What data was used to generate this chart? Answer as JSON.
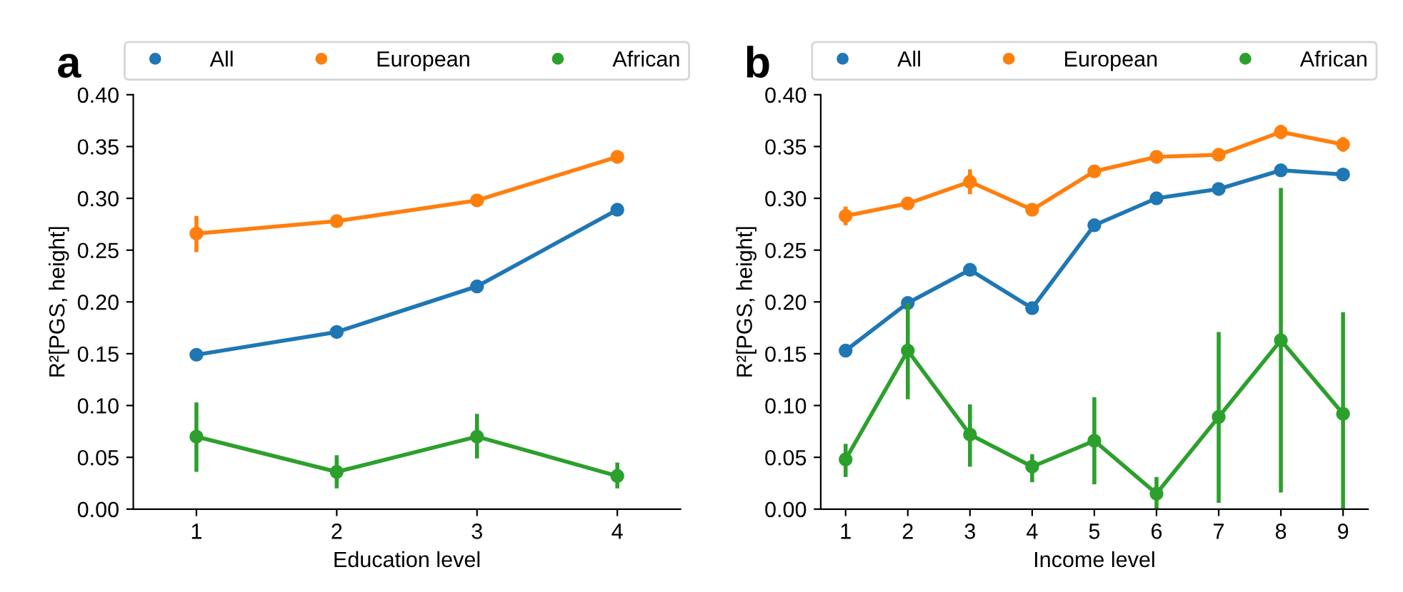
{
  "chart_data": [
    {
      "type": "line",
      "title": "a",
      "xlabel": "Education level",
      "ylabel": "R²[PGS, height]",
      "x": [
        1,
        2,
        3,
        4
      ],
      "xticks": [
        1,
        2,
        3,
        4
      ],
      "xlim": [
        0.55,
        4.45
      ],
      "ylim": [
        0,
        0.4
      ],
      "yticks": [
        {
          "value": 0,
          "label": "0.00"
        },
        {
          "value": 0.05,
          "label": "0.05"
        },
        {
          "value": 0.1,
          "label": "0.10"
        },
        {
          "value": 0.15,
          "label": "0.15"
        },
        {
          "value": 0.2,
          "label": "0.20"
        },
        {
          "value": 0.25,
          "label": "0.25"
        },
        {
          "value": 0.3,
          "label": "0.30"
        },
        {
          "value": 0.35,
          "label": "0.35"
        },
        {
          "value": 0.4,
          "label": "0.40"
        }
      ],
      "marker": "circle",
      "legend": "top",
      "grid": false,
      "series": [
        {
          "name": "All",
          "color": "#1f77b4",
          "values": [
            0.149,
            0.171,
            0.215,
            0.289
          ],
          "errors": [
            [
              0.145,
              0.153
            ],
            [
              0.168,
              0.174
            ],
            [
              0.211,
              0.219
            ],
            [
              0.286,
              0.292
            ]
          ]
        },
        {
          "name": "European",
          "color": "#ff7f0e",
          "values": [
            0.266,
            0.278,
            0.298,
            0.34
          ],
          "errors": [
            [
              0.248,
              0.283
            ],
            [
              0.273,
              0.283
            ],
            [
              0.293,
              0.303
            ],
            [
              0.337,
              0.343
            ]
          ]
        },
        {
          "name": "African",
          "color": "#2ca02c",
          "values": [
            0.07,
            0.036,
            0.07,
            0.032
          ],
          "errors": [
            [
              0.036,
              0.103
            ],
            [
              0.02,
              0.052
            ],
            [
              0.049,
              0.092
            ],
            [
              0.02,
              0.045
            ]
          ]
        }
      ]
    },
    {
      "type": "line",
      "title": "b",
      "xlabel": "Income level",
      "ylabel": "R²[PGS, height]",
      "x": [
        1,
        2,
        3,
        4,
        5,
        6,
        7,
        8,
        9
      ],
      "xticks": [
        1,
        2,
        3,
        4,
        5,
        6,
        7,
        8,
        9
      ],
      "xlim": [
        0.6,
        9.4
      ],
      "ylim": [
        0,
        0.4
      ],
      "yticks": [
        {
          "value": 0,
          "label": "0.00"
        },
        {
          "value": 0.05,
          "label": "0.05"
        },
        {
          "value": 0.1,
          "label": "0.10"
        },
        {
          "value": 0.15,
          "label": "0.15"
        },
        {
          "value": 0.2,
          "label": "0.20"
        },
        {
          "value": 0.25,
          "label": "0.25"
        },
        {
          "value": 0.3,
          "label": "0.30"
        },
        {
          "value": 0.35,
          "label": "0.35"
        },
        {
          "value": 0.4,
          "label": "0.40"
        }
      ],
      "marker": "circle",
      "legend": "top",
      "grid": false,
      "series": [
        {
          "name": "All",
          "color": "#1f77b4",
          "values": [
            0.153,
            0.199,
            0.231,
            0.194,
            0.274,
            0.3,
            0.309,
            0.327,
            0.323
          ],
          "errors": [
            0.003,
            0.004,
            0.005,
            0.003,
            0.004,
            0.004,
            0.004,
            0.006,
            0.006
          ]
        },
        {
          "name": "European",
          "color": "#ff7f0e",
          "values": [
            0.283,
            0.295,
            0.316,
            0.289,
            0.326,
            0.34,
            0.342,
            0.364,
            0.352
          ],
          "errors": [
            0.009,
            0.005,
            0.012,
            0.004,
            0.006,
            0.006,
            0.006,
            0.007,
            0.007
          ]
        },
        {
          "name": "African",
          "color": "#2ca02c",
          "values": [
            0.048,
            0.153,
            0.072,
            0.041,
            0.066,
            0.015,
            0.089,
            0.163,
            0.092
          ],
          "errors": [
            [
              0.031,
              0.063
            ],
            [
              0.106,
              0.199
            ],
            [
              0.041,
              0.101
            ],
            [
              0.026,
              0.053
            ],
            [
              0.024,
              0.108
            ],
            [
              0,
              0.031
            ],
            [
              0.006,
              0.171
            ],
            [
              0.016,
              0.31
            ],
            [
              0,
              0.19
            ]
          ]
        }
      ]
    }
  ]
}
